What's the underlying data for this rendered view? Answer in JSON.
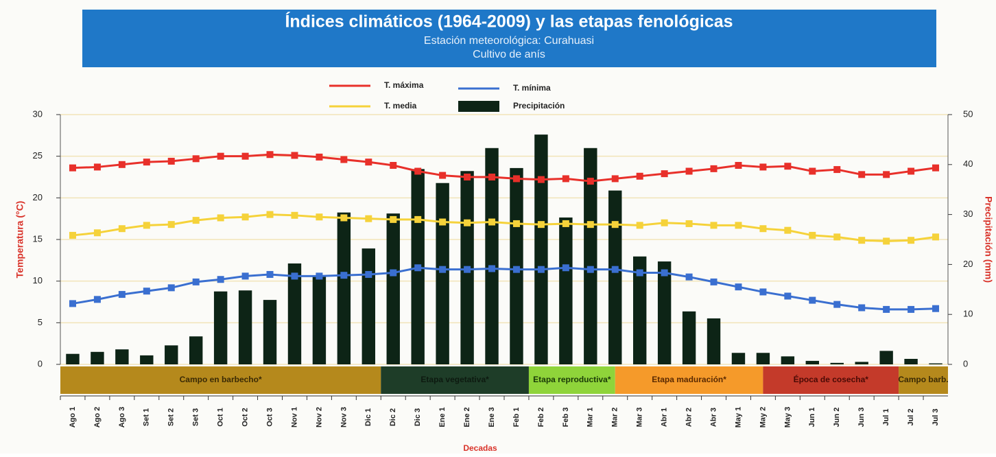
{
  "chart_data": {
    "type": "combo",
    "title": "Índices climáticos (1964-2009) y las etapas fenológicas",
    "subtitle": "Estación meteorológica: Curahuasi",
    "subtitle2": "Cultivo de anís",
    "y_label": "Temperatura (°C)",
    "y2_label": "Precipitación (mm)",
    "x_label": "Decadas",
    "categories": [
      "Ago 1",
      "Ago 2",
      "Ago 3",
      "Set 1",
      "Set 2",
      "Set 3",
      "Oct 1",
      "Oct 2",
      "Oct 3",
      "Nov 1",
      "Nov 2",
      "Nov 3",
      "Dic 1",
      "Dic 2",
      "Dic 3",
      "Ene 1",
      "Ene 2",
      "Ene 3",
      "Feb 1",
      "Feb 2",
      "Feb 3",
      "Mar 1",
      "Mar 2",
      "Mar 3",
      "Abr 1",
      "Abr 2",
      "Abr 3",
      "May 1",
      "May 2",
      "May 3",
      "Jun 1",
      "Jun 2",
      "Jun 3",
      "Jul 1",
      "Jul 2",
      "Jul 3"
    ],
    "ylim": [
      0,
      30
    ],
    "yticks": [
      0,
      5,
      10,
      15,
      20,
      25,
      30
    ],
    "y2lim": [
      0,
      50
    ],
    "y2ticks": [
      0,
      10,
      20,
      30,
      40,
      50
    ],
    "grid": true,
    "series": [
      {
        "name": "Precipitación",
        "type": "bar",
        "axis": "y2",
        "color": "#0d2416",
        "values": [
          2.1,
          2.5,
          3.0,
          1.8,
          3.8,
          5.6,
          14.6,
          14.8,
          12.9,
          20.2,
          17.7,
          30.4,
          23.2,
          30.2,
          39.1,
          36.3,
          38.7,
          43.3,
          39.3,
          46.0,
          29.4,
          43.3,
          34.8,
          21.6,
          20.6,
          10.6,
          9.2,
          2.3,
          2.3,
          1.6,
          0.7,
          0.3,
          0.5,
          2.7,
          1.1,
          0.2
        ]
      },
      {
        "name": "T. máxima",
        "type": "line",
        "color": "#e8302a",
        "values": [
          23.6,
          23.7,
          24.0,
          24.3,
          24.4,
          24.7,
          25.0,
          25.0,
          25.2,
          25.1,
          24.9,
          24.6,
          24.3,
          23.9,
          23.2,
          22.7,
          22.5,
          22.5,
          22.3,
          22.2,
          22.3,
          22.0,
          22.3,
          22.6,
          22.9,
          23.2,
          23.5,
          23.9,
          23.7,
          23.8,
          23.2,
          23.4,
          22.8,
          22.8,
          23.2,
          23.6
        ]
      },
      {
        "name": "T. media",
        "type": "line",
        "color": "#f5d23a",
        "values": [
          15.5,
          15.8,
          16.3,
          16.7,
          16.8,
          17.3,
          17.6,
          17.7,
          18.0,
          17.9,
          17.7,
          17.6,
          17.5,
          17.4,
          17.4,
          17.1,
          17.0,
          17.1,
          16.9,
          16.8,
          16.9,
          16.8,
          16.8,
          16.7,
          17.0,
          16.9,
          16.7,
          16.7,
          16.3,
          16.1,
          15.5,
          15.3,
          14.9,
          14.8,
          14.9,
          15.3
        ]
      },
      {
        "name": "T. mínima",
        "type": "line",
        "color": "#3a6fd0",
        "values": [
          7.3,
          7.8,
          8.4,
          8.8,
          9.2,
          9.9,
          10.2,
          10.6,
          10.8,
          10.6,
          10.6,
          10.7,
          10.8,
          11.0,
          11.6,
          11.4,
          11.4,
          11.5,
          11.4,
          11.4,
          11.6,
          11.4,
          11.4,
          11.0,
          11.0,
          10.5,
          9.9,
          9.3,
          8.7,
          8.2,
          7.7,
          7.2,
          6.8,
          6.6,
          6.6,
          6.7
        ]
      }
    ],
    "phases": [
      {
        "label": "Campo en barbecho*",
        "decades": 13,
        "color": "#b5891c",
        "text_color": "#3a2a05"
      },
      {
        "label": "Etapa vegetativa*",
        "decades": 6,
        "color": "#1e3d28",
        "text_color": "#0d1a10"
      },
      {
        "label": "Etapa reproductiva*",
        "decades": 3.5,
        "color": "#8fd43a",
        "text_color": "#1a3a08"
      },
      {
        "label": "Etapa maduración*",
        "decades": 6,
        "color": "#f59a2a",
        "text_color": "#5a2a02"
      },
      {
        "label": "Época de cosecha*",
        "decades": 5.5,
        "color": "#c43a2a",
        "text_color": "#4a0a05"
      },
      {
        "label": "Campo barb.",
        "decades": 2,
        "color": "#b5891c",
        "text_color": "#3a2a05"
      }
    ]
  }
}
